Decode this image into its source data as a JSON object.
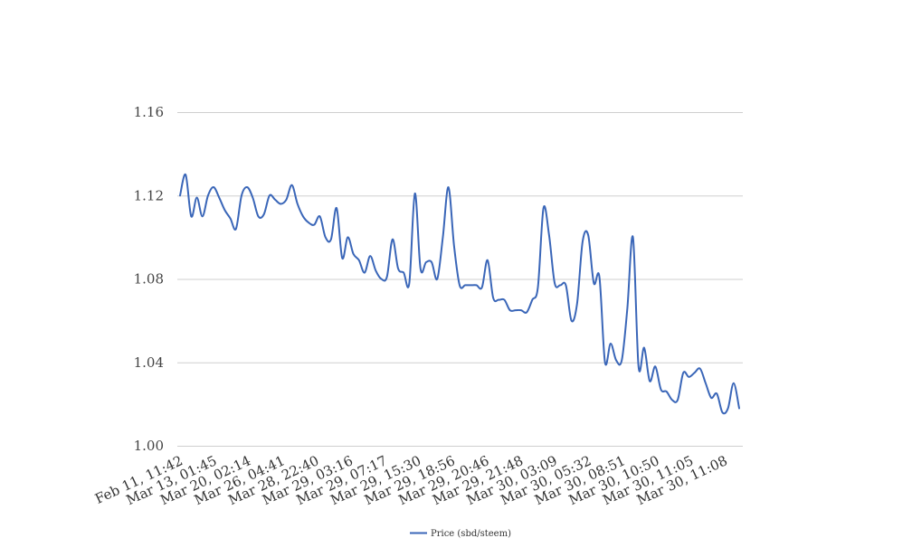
{
  "chart_data": {
    "type": "line",
    "ylim": [
      1.0,
      1.16
    ],
    "yticks": [
      "1.00",
      "1.04",
      "1.08",
      "1.12",
      "1.16"
    ],
    "grid": true,
    "legend_position": "bottom-center",
    "x_tick_labels": [
      "Feb 11, 11:42",
      "Mar 13, 01:45",
      "Mar 20, 02:14",
      "Mar 26, 04:41",
      "Mar 28, 22:40",
      "Mar 29, 03:16",
      "Mar 29, 07:17",
      "Mar 29, 15:30",
      "Mar 29, 18:56",
      "Mar 29, 20:46",
      "Mar 29, 21:48",
      "Mar 30, 03:09",
      "Mar 30, 05:32",
      "Mar 30, 08:51",
      "Mar 30, 10:50",
      "Mar 30, 11:05",
      "Mar 30, 11:08"
    ],
    "series": [
      {
        "name": "Price (sbd/steem)",
        "color": "#3a66b8",
        "values": [
          1.12,
          1.13,
          1.11,
          1.119,
          1.11,
          1.12,
          1.124,
          1.119,
          1.113,
          1.109,
          1.104,
          1.12,
          1.124,
          1.119,
          1.11,
          1.111,
          1.12,
          1.118,
          1.116,
          1.118,
          1.125,
          1.116,
          1.11,
          1.107,
          1.106,
          1.11,
          1.1,
          1.099,
          1.114,
          1.09,
          1.1,
          1.092,
          1.089,
          1.083,
          1.091,
          1.084,
          1.08,
          1.081,
          1.099,
          1.085,
          1.083,
          1.078,
          1.121,
          1.085,
          1.088,
          1.088,
          1.08,
          1.1,
          1.124,
          1.096,
          1.077,
          1.077,
          1.077,
          1.077,
          1.076,
          1.089,
          1.071,
          1.07,
          1.07,
          1.065,
          1.065,
          1.065,
          1.064,
          1.07,
          1.076,
          1.114,
          1.101,
          1.078,
          1.077,
          1.077,
          1.06,
          1.068,
          1.098,
          1.101,
          1.078,
          1.081,
          1.04,
          1.049,
          1.041,
          1.041,
          1.066,
          1.1,
          1.038,
          1.047,
          1.031,
          1.038,
          1.027,
          1.026,
          1.022,
          1.022,
          1.035,
          1.033,
          1.035,
          1.037,
          1.03,
          1.023,
          1.025,
          1.016,
          1.018,
          1.03,
          1.018
        ]
      }
    ]
  }
}
